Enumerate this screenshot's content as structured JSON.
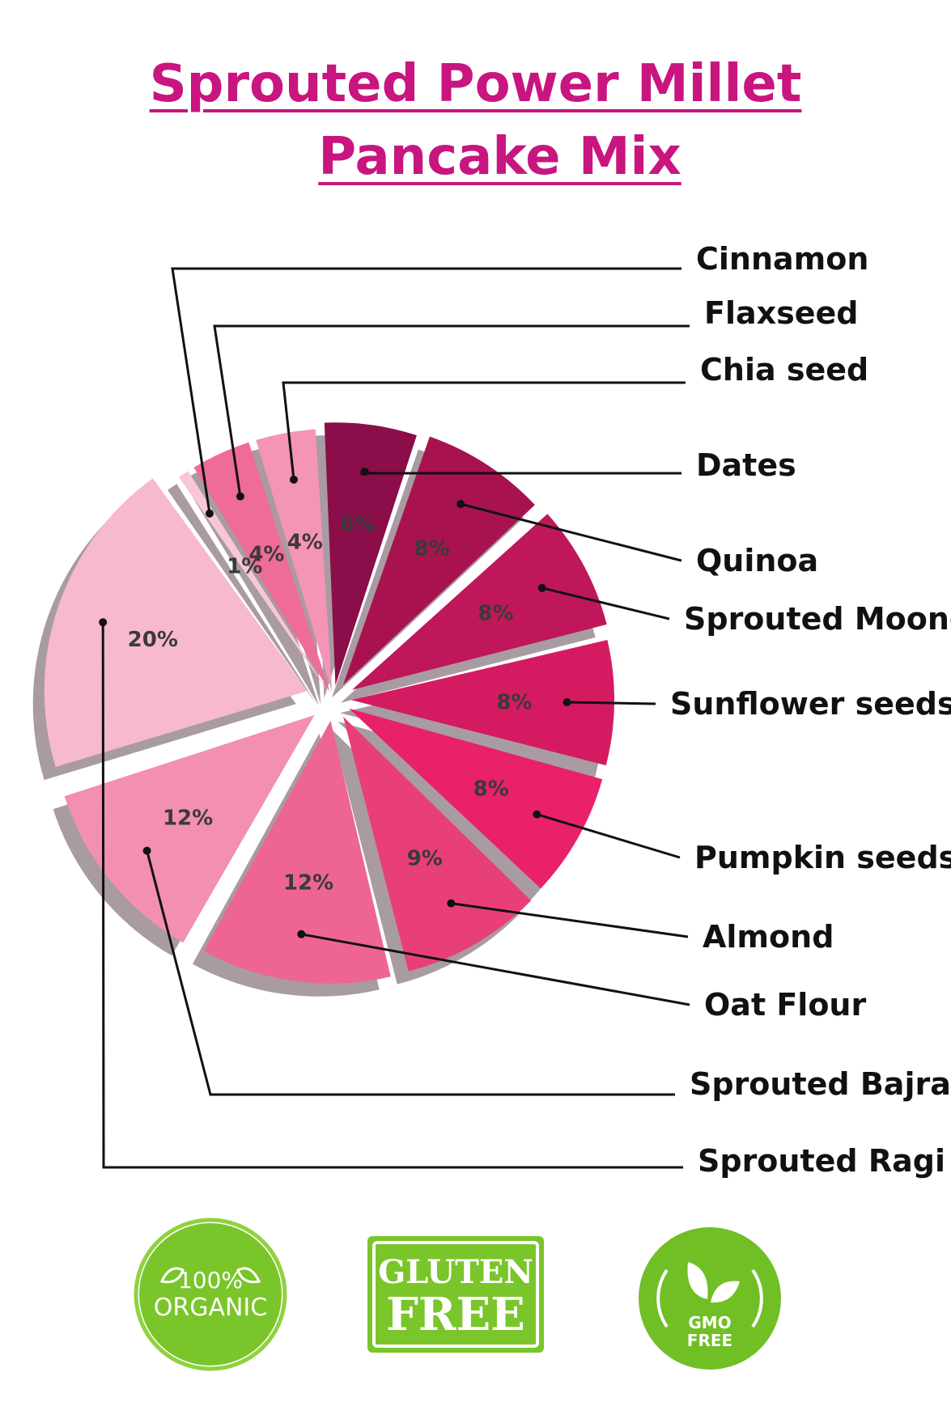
{
  "title": {
    "line1": "Sprouted Power Millet",
    "line2": "Pancake Mix",
    "color": "#c8157f"
  },
  "chart_data": {
    "type": "pie",
    "title": "Sprouted Power Millet Pancake Mix",
    "slices": [
      {
        "label": "Dates",
        "value": 6,
        "display": "6%",
        "color": "#8b0d4a"
      },
      {
        "label": "Quinoa",
        "value": 8,
        "display": "8%",
        "color": "#a8134f"
      },
      {
        "label": "Sprouted Moong",
        "value": 8,
        "display": "8%",
        "color": "#c0175a"
      },
      {
        "label": "Sunflower seeds",
        "value": 8,
        "display": "8%",
        "color": "#d41b62"
      },
      {
        "label": "Pumpkin seeds",
        "value": 8,
        "display": "8%",
        "color": "#e9206a"
      },
      {
        "label": "Almond",
        "value": 9,
        "display": "9%",
        "color": "#e83f7b"
      },
      {
        "label": "Oat Flour",
        "value": 12,
        "display": "12%",
        "color": "#ee6495"
      },
      {
        "label": "Sprouted Bajra",
        "value": 12,
        "display": "12%",
        "color": "#f28fb3"
      },
      {
        "label": "Sprouted Ragi",
        "value": 20,
        "display": "20%",
        "color": "#f6b9cf"
      },
      {
        "label": "Cinnamon",
        "value": 1,
        "display": "1%",
        "color": "#f8c6d8"
      },
      {
        "label": "Flaxseed",
        "value": 4,
        "display": "4%",
        "color": "#ef6b9a"
      },
      {
        "label": "Chia seed",
        "value": 4,
        "display": "4%",
        "color": "#f494b6"
      }
    ],
    "shadow_color": "#a89ba1"
  },
  "badges": {
    "organic": {
      "line1": "100%",
      "line2": "ORGANIC",
      "color": "#7ac52a"
    },
    "gluten": {
      "line1": "GLUTEN",
      "line2": "FREE",
      "color": "#7ac52a"
    },
    "gmo": {
      "line1": "GMO",
      "line2": "FREE",
      "color": "#6fbf25"
    }
  }
}
